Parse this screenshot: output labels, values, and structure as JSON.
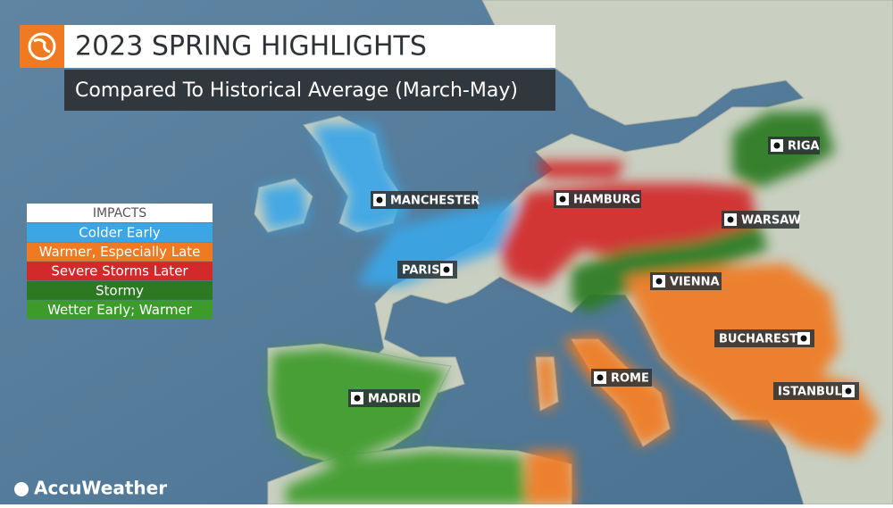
{
  "header": {
    "title": "2023 SPRING HIGHLIGHTS",
    "subtitle": "Compared To Historical Average (March-May)"
  },
  "legend": {
    "title": "IMPACTS",
    "items": [
      {
        "label": "Colder Early",
        "color": "#3aa6e6"
      },
      {
        "label": "Warmer, Especially Late",
        "color": "#f07a22"
      },
      {
        "label": "Severe Storms Later",
        "color": "#d22a2a"
      },
      {
        "label": "Stormy",
        "color": "#2b7a22"
      },
      {
        "label": "Wetter Early; Warmer",
        "color": "#3d9b2b"
      }
    ]
  },
  "cities": [
    {
      "label": "MANCHESTER"
    },
    {
      "label": "PARIS"
    },
    {
      "label": "HAMBURG"
    },
    {
      "label": "WARSAW"
    },
    {
      "label": "RIGA"
    },
    {
      "label": "VIENNA"
    },
    {
      "label": "BUCHAREST"
    },
    {
      "label": "ROME"
    },
    {
      "label": "ISTANBUL"
    },
    {
      "label": "MADRID"
    }
  ],
  "brand": "AccuWeather"
}
